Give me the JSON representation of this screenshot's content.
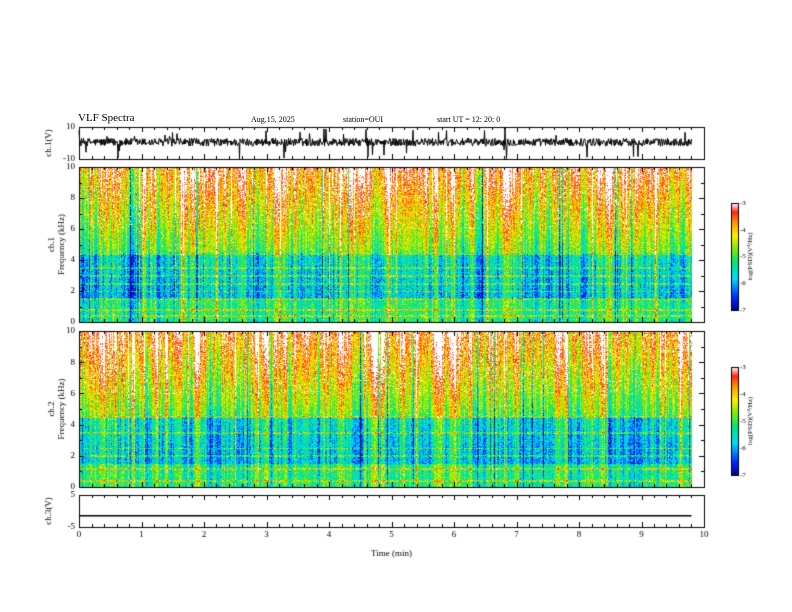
{
  "header": {
    "title": "VLF Spectra",
    "date": "Aug.15, 2025",
    "station": "station=OUI",
    "start_ut": "start  UT =   12: 20: 0"
  },
  "chart_data": [
    {
      "type": "line",
      "id": "ch1-waveform",
      "ylabel": "ch.1(V)",
      "ylim": [
        -10,
        10
      ],
      "ytick_labels": [
        "10",
        "-10"
      ],
      "x_range_min": [
        0,
        9.8
      ],
      "description_level": 0.5,
      "noise_spread": 2.5
    },
    {
      "type": "heatmap",
      "id": "ch1-spectrogram",
      "ylabel_channel": "ch.1",
      "ylabel": "Frequency (kHz)",
      "ylim": [
        0,
        10
      ],
      "ytick_labels": [
        "0",
        "2",
        "4",
        "6",
        "8",
        "10"
      ],
      "xlim": [
        0,
        10
      ],
      "data_end_min": 9.8,
      "colorbar": {
        "label": "log(PSD)(V²/Hz)",
        "range": [
          -7,
          -3
        ],
        "tick_labels": [
          "-3",
          "-4",
          "-5",
          "-6",
          "-7"
        ]
      },
      "bands_khz": [
        0.4,
        0.8,
        1.5,
        2.0,
        2.5,
        3.0,
        3.5,
        4.4
      ]
    },
    {
      "type": "heatmap",
      "id": "ch2-spectrogram",
      "ylabel_channel": "ch.2",
      "ylabel": "Frequency (kHz)",
      "ylim": [
        0,
        10
      ],
      "ytick_labels": [
        "0",
        "2",
        "4",
        "6",
        "8",
        "10"
      ],
      "xlim": [
        0,
        10
      ],
      "data_end_min": 9.8,
      "colorbar": {
        "label": "log(PSD)(V²/Hz)",
        "range": [
          -7,
          -3
        ],
        "tick_labels": [
          "-3",
          "-4",
          "-5",
          "-6",
          "-7"
        ]
      },
      "bands_khz": [
        0.4,
        1.2,
        2.0,
        2.5,
        3.5,
        4.5
      ]
    },
    {
      "type": "line",
      "id": "ch3-trace",
      "ylabel": "ch.3(V)",
      "ylim": [
        -5,
        5
      ],
      "ytick_labels": [
        "5",
        "-5"
      ],
      "constant_value": -1.5,
      "x_range_min": [
        0,
        9.8
      ]
    }
  ],
  "x_axis": {
    "label": "Time (min)",
    "range": [
      0,
      10
    ],
    "tick_labels": [
      "0",
      "1",
      "2",
      "3",
      "4",
      "5",
      "6",
      "7",
      "8",
      "9",
      "10"
    ]
  }
}
